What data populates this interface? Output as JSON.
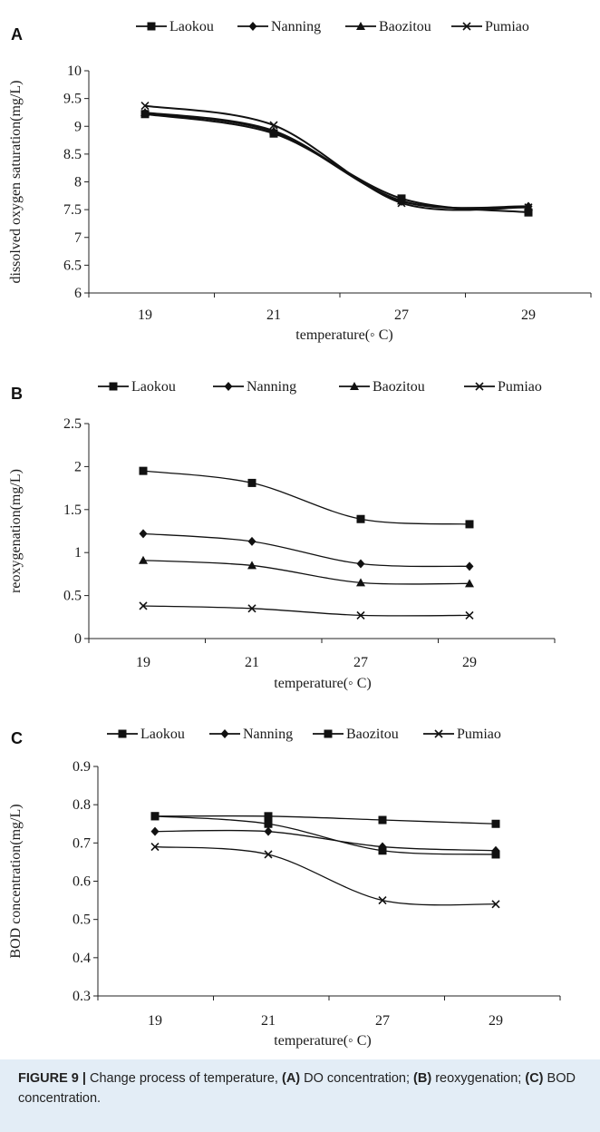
{
  "caption": {
    "figure_label": "FIGURE 9 |",
    "text_1": " Change process of temperature, ",
    "label_a": "(A)",
    "text_2": " DO concentration; ",
    "label_b": "(B)",
    "text_3": " reoxygenation; ",
    "label_c": "(C)",
    "text_4": " BOD concentration."
  },
  "chart_data": [
    {
      "panel": "A",
      "type": "line",
      "categories": [
        "19",
        "21",
        "27",
        "29"
      ],
      "xlabel": "temperature(◦ C)",
      "ylabel": "dissolved oxygen saturation(mg/L)",
      "ylim": [
        6,
        10
      ],
      "yticks": [
        "6",
        "6.5",
        "7",
        "7.5",
        "8",
        "8.5",
        "9",
        "9.5",
        "10"
      ],
      "grid": false,
      "legend_position": "top",
      "series": [
        {
          "name": "Laokou",
          "marker": "square",
          "values": [
            9.22,
            8.87,
            7.7,
            7.45
          ]
        },
        {
          "name": "Nanning",
          "marker": "diamond",
          "values": [
            9.24,
            8.9,
            7.65,
            7.56
          ]
        },
        {
          "name": "Baozitou",
          "marker": "triangle",
          "values": [
            9.25,
            8.92,
            7.66,
            7.55
          ]
        },
        {
          "name": "Pumiao",
          "marker": "x",
          "values": [
            9.37,
            9.02,
            7.62,
            7.54
          ]
        }
      ]
    },
    {
      "panel": "B",
      "type": "line",
      "categories": [
        "19",
        "21",
        "27",
        "29"
      ],
      "xlabel": "temperature(◦ C)",
      "ylabel": "reoxygenation(mg/L)",
      "ylim": [
        0,
        2.5
      ],
      "yticks": [
        "0",
        "0.5",
        "1",
        "1.5",
        "2",
        "2.5"
      ],
      "grid": false,
      "legend_position": "top",
      "series": [
        {
          "name": "Laokou",
          "marker": "square",
          "values": [
            1.95,
            1.81,
            1.39,
            1.33
          ]
        },
        {
          "name": "Nanning",
          "marker": "diamond",
          "values": [
            1.22,
            1.13,
            0.87,
            0.84
          ]
        },
        {
          "name": "Baozitou",
          "marker": "triangle",
          "values": [
            0.91,
            0.85,
            0.65,
            0.64
          ]
        },
        {
          "name": "Pumiao",
          "marker": "x",
          "values": [
            0.38,
            0.35,
            0.27,
            0.27
          ]
        }
      ]
    },
    {
      "panel": "C",
      "type": "line",
      "categories": [
        "19",
        "21",
        "27",
        "29"
      ],
      "xlabel": "temperature(◦ C)",
      "ylabel": "BOD concentration(mg/L)",
      "ylim": [
        0.3,
        0.9
      ],
      "yticks": [
        "0.3",
        "0.4",
        "0.5",
        "0.6",
        "0.7",
        "0.8",
        "0.9"
      ],
      "grid": false,
      "legend_position": "top",
      "series": [
        {
          "name": "Laokou",
          "marker": "square",
          "values": [
            0.77,
            0.75,
            0.68,
            0.67
          ]
        },
        {
          "name": "Nanning",
          "marker": "diamond",
          "values": [
            0.73,
            0.73,
            0.69,
            0.68
          ]
        },
        {
          "name": "Baozitou",
          "marker": "square",
          "values": [
            0.77,
            0.77,
            0.76,
            0.75
          ]
        },
        {
          "name": "Pumiao",
          "marker": "x",
          "values": [
            0.69,
            0.67,
            0.55,
            0.54
          ]
        }
      ]
    }
  ]
}
